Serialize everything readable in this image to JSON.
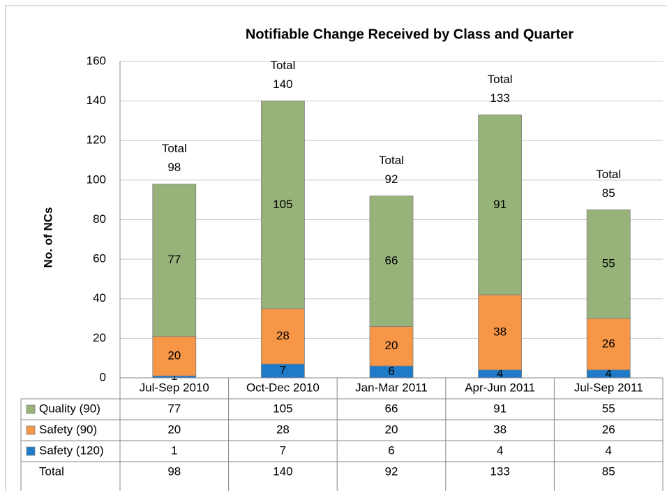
{
  "chart_data": {
    "type": "bar",
    "stacked": true,
    "title": "Notifiable Change Received by Class and Quarter",
    "y_label": "No. of NCs",
    "categories": [
      "Jul-Sep 2010",
      "Oct-Dec 2010",
      "Jan-Mar 2011",
      "Apr-Jun 2011",
      "Jul-Sep 2011"
    ],
    "series": [
      {
        "name": "Safety (120)",
        "color": "#1f7bc8",
        "values": [
          1,
          7,
          6,
          4,
          4
        ]
      },
      {
        "name": "Safety (90)",
        "color": "#f79646",
        "values": [
          20,
          28,
          20,
          38,
          26
        ]
      },
      {
        "name": "Quality (90)",
        "color": "#98b37a",
        "values": [
          77,
          105,
          66,
          91,
          55
        ]
      }
    ],
    "totals": {
      "name": "Total",
      "values": [
        98,
        140,
        92,
        133,
        85
      ]
    },
    "ylim": [
      0,
      160
    ],
    "yticks": [
      0,
      20,
      40,
      60,
      80,
      100,
      120,
      140,
      160
    ],
    "grid": true,
    "data_table": true
  }
}
